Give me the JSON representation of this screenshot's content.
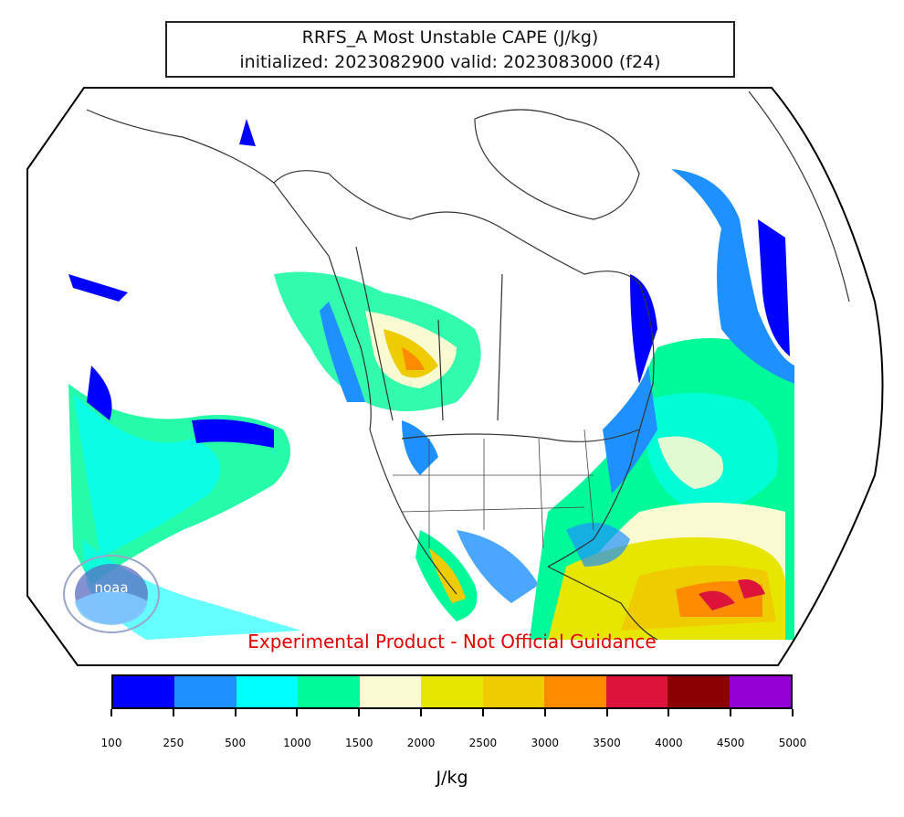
{
  "title": {
    "line1": "RRFS_A Most Unstable CAPE (J/kg)",
    "line2": "initialized: 2023082900 valid: 2023083000 (f24)"
  },
  "warning": "Experimental Product - Not Official Guidance",
  "colorbar": {
    "unit": "J/kg",
    "ticks": [
      "100",
      "250",
      "500",
      "1000",
      "1500",
      "2000",
      "2500",
      "3000",
      "3500",
      "4000",
      "4500",
      "5000"
    ],
    "colors": [
      "#0000ff",
      "#1e90ff",
      "#00ffff",
      "#00fa9a",
      "#fafad2",
      "#e6e600",
      "#eecc00",
      "#ff8c00",
      "#dc143c",
      "#8b0000",
      "#9400d3"
    ]
  },
  "logo": {
    "text": "noaa",
    "icon": "noaa-seal-icon"
  }
}
